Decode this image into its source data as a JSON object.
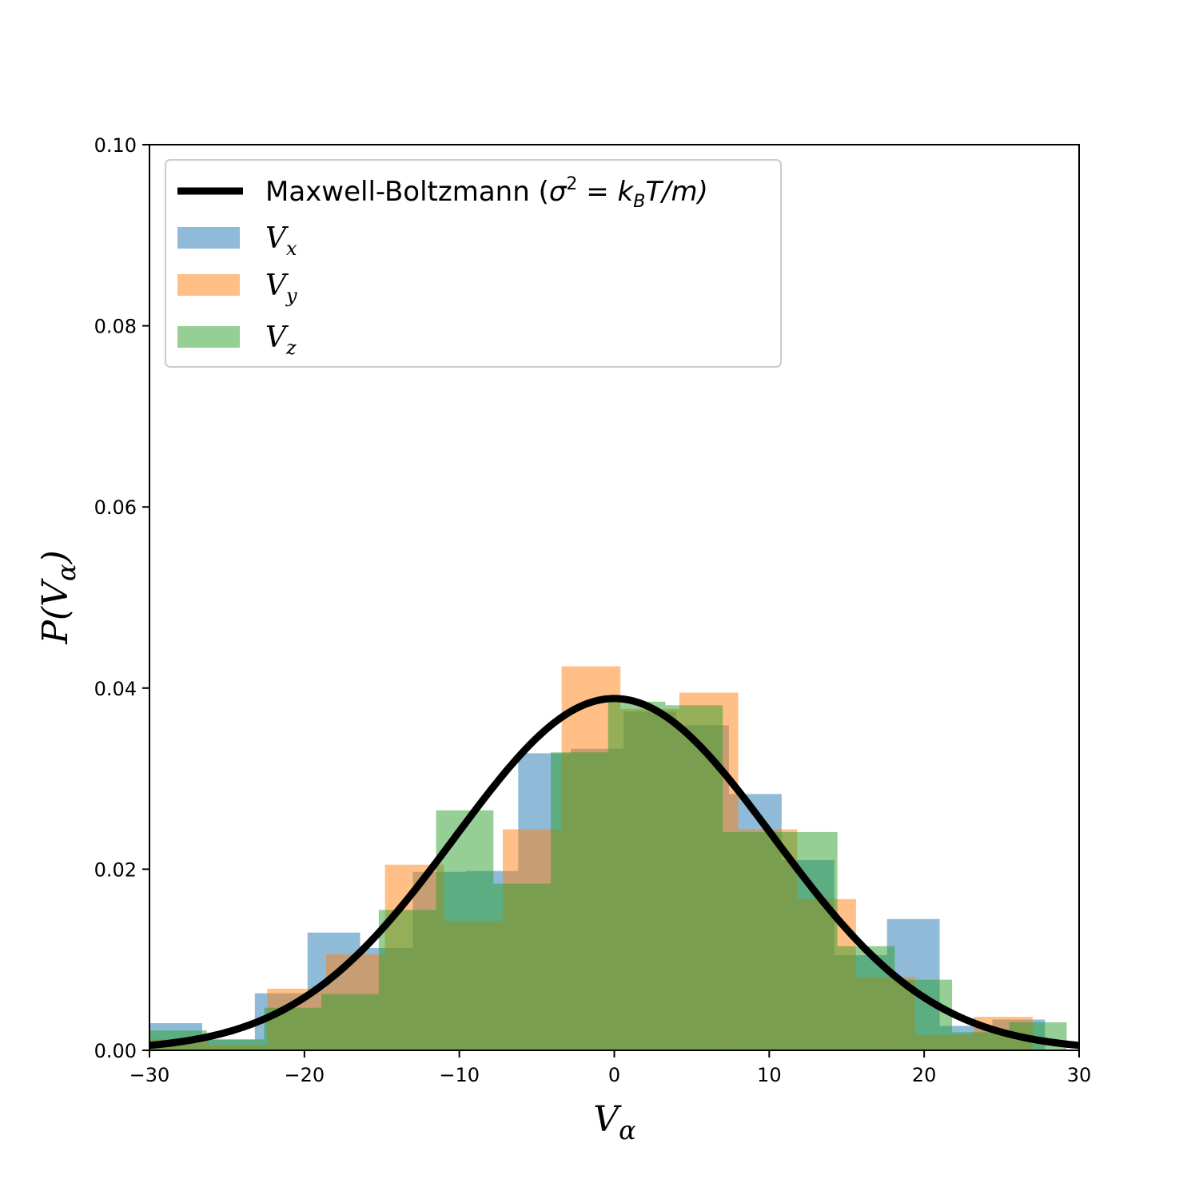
{
  "chart_data": {
    "type": "bar",
    "subtype": "overlaid-histogram-with-curve",
    "xlim": [
      -30,
      30
    ],
    "ylim": [
      0,
      0.1
    ],
    "xticks": [
      -30,
      -20,
      -10,
      0,
      10,
      20,
      30
    ],
    "xtick_labels": [
      "−30",
      "−20",
      "−10",
      "0",
      "10",
      "20",
      "30"
    ],
    "yticks": [
      0,
      0.02,
      0.04,
      0.06,
      0.08,
      0.1
    ],
    "ytick_labels": [
      "0.00",
      "0.02",
      "0.04",
      "0.06",
      "0.08",
      "0.10"
    ],
    "xlabel": {
      "base": "V",
      "sub": "α"
    },
    "ylabel": {
      "pre": "P(",
      "base": "V",
      "sub": "α",
      "post": ")"
    },
    "grid": false,
    "legend_position": "top-left",
    "curve": {
      "label": "Maxwell-Boltzmann (σ² = k_B T/m)",
      "label_parts": {
        "name": "Maxwell-Boltzmann (",
        "sigma": "σ",
        "sup": "2",
        "eq": " = ",
        "k": "k",
        "ksub": "B",
        "tail": "T/m)"
      },
      "function": "gaussian",
      "mean": 0,
      "sigma": 10.27,
      "color": "#000000"
    },
    "series": [
      {
        "name": "V_x",
        "label_base": "V",
        "label_sub": "x",
        "color": "#1f77b4",
        "edges": [
          -30,
          -26.6,
          -23.2,
          -19.8,
          -16.4,
          -13.0,
          -9.6,
          -6.2,
          -2.8,
          0.6,
          4.0,
          7.4,
          10.8,
          14.2,
          17.6,
          21.0,
          24.4,
          27.8
        ],
        "values": [
          0.003,
          0.0012,
          0.0063,
          0.013,
          0.0113,
          0.0197,
          0.0198,
          0.0328,
          0.0333,
          0.0374,
          0.0359,
          0.0283,
          0.021,
          0.0105,
          0.0145,
          0.0027,
          0.0034
        ]
      },
      {
        "name": "V_y",
        "label_base": "V",
        "label_sub": "y",
        "color": "#ff7f0e",
        "edges": [
          -30,
          -26.2,
          -22.4,
          -18.6,
          -14.8,
          -11.0,
          -7.2,
          -3.4,
          0.4,
          4.2,
          8.0,
          11.8,
          15.6,
          19.4,
          23.2,
          27.0
        ],
        "values": [
          0.0012,
          0.0006,
          0.0068,
          0.0106,
          0.0205,
          0.0143,
          0.0244,
          0.0424,
          0.0377,
          0.0395,
          0.0244,
          0.0167,
          0.0081,
          0.0017,
          0.0037
        ]
      },
      {
        "name": "V_z",
        "label_base": "V",
        "label_sub": "z",
        "color": "#2ca02c",
        "edges": [
          -30,
          -26.3,
          -22.6,
          -18.9,
          -15.2,
          -11.5,
          -7.8,
          -4.1,
          -0.4,
          3.3,
          7.0,
          10.7,
          14.4,
          18.1,
          21.8,
          25.5,
          29.2
        ],
        "values": [
          0.0022,
          0.0012,
          0.0047,
          0.0062,
          0.0155,
          0.0265,
          0.0184,
          0.0329,
          0.0385,
          0.0381,
          0.0241,
          0.0241,
          0.0115,
          0.0078,
          0.002,
          0.0031
        ]
      }
    ]
  }
}
